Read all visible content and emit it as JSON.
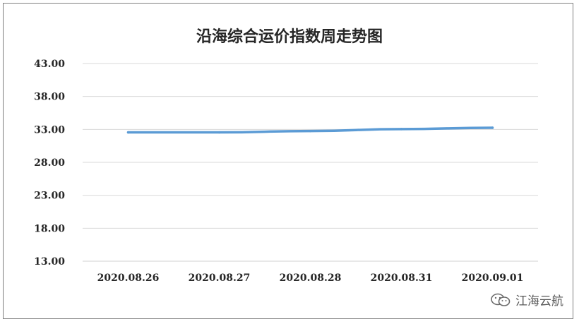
{
  "chart_data": {
    "type": "line",
    "title": "沿海综合运价指数周走势图",
    "categories": [
      "2020.08.26",
      "2020.08.27",
      "2020.08.28",
      "2020.08.31",
      "2020.09.01"
    ],
    "series": [
      {
        "values": [
          32.55,
          32.55,
          32.75,
          33.05,
          33.25
        ],
        "color": "#5b9bd5"
      }
    ],
    "ylim": [
      13,
      43
    ],
    "yticks": [
      "13.00",
      "18.00",
      "23.00",
      "28.00",
      "33.00",
      "38.00",
      "43.00"
    ],
    "grid": true,
    "xlabel": "",
    "ylabel": ""
  },
  "watermark": {
    "text": "江海云航",
    "icon": "wechat-icon"
  }
}
